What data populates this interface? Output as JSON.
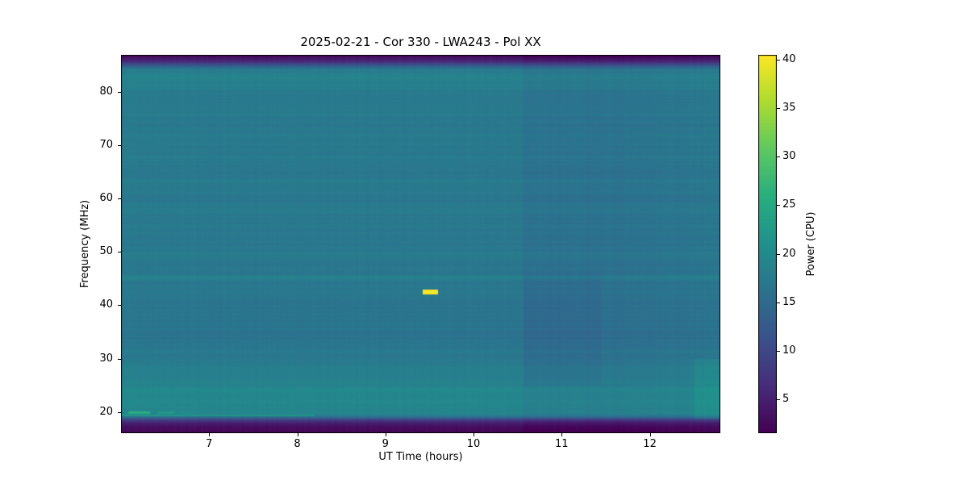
{
  "figure": {
    "background": "#ffffff"
  },
  "chart_data": {
    "type": "heatmap",
    "title": "2025-02-21 - Cor 330 - LWA243 - Pol XX",
    "xlabel": "UT Time (hours)",
    "ylabel": "Frequency (MHz)",
    "colorbar_label": "Power (CPU)",
    "x_range": [
      6.0,
      12.8
    ],
    "y_range": [
      16.0,
      87.0
    ],
    "x_ticks": [
      7,
      8,
      9,
      10,
      11,
      12
    ],
    "y_ticks": [
      20,
      30,
      40,
      50,
      60,
      70,
      80
    ],
    "colorbar_ticks": [
      5,
      10,
      15,
      20,
      25,
      30,
      35,
      40
    ],
    "value_range": [
      1.5,
      40.5
    ],
    "colormap": "viridis",
    "colormap_stops": [
      "#440154",
      "#472d7b",
      "#3b528b",
      "#2c728e",
      "#21918c",
      "#28ae80",
      "#5ec962",
      "#addc30",
      "#fde725"
    ],
    "grid": false,
    "baseline_spectrum": [
      [
        16.0,
        2.0
      ],
      [
        16.8,
        2.4
      ],
      [
        17.4,
        3.2
      ],
      [
        18.0,
        5.0
      ],
      [
        18.5,
        9.0
      ],
      [
        19.0,
        15.0
      ],
      [
        19.4,
        18.0
      ],
      [
        20.0,
        19.2
      ],
      [
        22.0,
        19.6
      ],
      [
        24.0,
        19.4
      ],
      [
        26.0,
        18.6
      ],
      [
        28.0,
        17.8
      ],
      [
        30.0,
        17.2
      ],
      [
        33.0,
        16.7
      ],
      [
        36.0,
        16.5
      ],
      [
        39.0,
        16.7
      ],
      [
        42.0,
        16.9
      ],
      [
        44.5,
        17.1
      ],
      [
        45.2,
        18.4
      ],
      [
        46.0,
        17.2
      ],
      [
        48.0,
        17.1
      ],
      [
        50.0,
        17.3
      ],
      [
        52.0,
        17.0
      ],
      [
        55.0,
        17.1
      ],
      [
        57.5,
        17.5
      ],
      [
        59.0,
        17.0
      ],
      [
        61.0,
        17.1
      ],
      [
        63.0,
        17.9
      ],
      [
        64.5,
        17.1
      ],
      [
        67.0,
        17.2
      ],
      [
        69.5,
        17.6
      ],
      [
        71.0,
        17.1
      ],
      [
        74.0,
        17.3
      ],
      [
        77.0,
        17.6
      ],
      [
        79.0,
        17.4
      ],
      [
        81.0,
        17.8
      ],
      [
        83.0,
        19.0
      ],
      [
        84.2,
        17.5
      ],
      [
        85.0,
        12.0
      ],
      [
        85.8,
        6.0
      ],
      [
        86.5,
        3.0
      ],
      [
        87.0,
        2.0
      ]
    ],
    "time_trend": [
      [
        6.0,
        0.25
      ],
      [
        7.0,
        0.05
      ],
      [
        9.0,
        0.0
      ],
      [
        10.54,
        0.0
      ],
      [
        10.58,
        -0.95
      ],
      [
        11.6,
        -0.95
      ],
      [
        12.2,
        -0.6
      ],
      [
        12.55,
        -0.35
      ],
      [
        12.8,
        -0.2
      ]
    ],
    "features": [
      {
        "name": "solar-burst",
        "t": [
          9.42,
          9.6
        ],
        "f": [
          42.1,
          42.9
        ],
        "power": 40
      },
      {
        "name": "rfi-dash-1",
        "t": [
          6.08,
          6.33
        ],
        "f": [
          19.7,
          20.05
        ],
        "power": 26
      },
      {
        "name": "rfi-dash-2",
        "t": [
          6.42,
          6.6
        ],
        "f": [
          19.7,
          20.05
        ],
        "power": 22
      },
      {
        "name": "rfi-dash-3",
        "t": [
          6.68,
          6.82
        ],
        "f": [
          19.7,
          20.05
        ],
        "power": 20
      },
      {
        "name": "rfi-faint-line",
        "t": [
          6.0,
          8.2
        ],
        "f": [
          19.25,
          19.5
        ],
        "delta": 4
      },
      {
        "name": "post-1030-darker-patch",
        "t": [
          10.58,
          11.45
        ],
        "f": [
          25.0,
          46.0
        ],
        "delta": -0.7
      },
      {
        "name": "right-edge-bright-low-freq",
        "t": [
          12.5,
          12.8
        ],
        "f": [
          18.5,
          30.0
        ],
        "delta": 1.7
      }
    ],
    "noise": {
      "pixel": 0.5,
      "row_fine": 0.7,
      "row_coarse": 0.6,
      "column": 0.4
    }
  }
}
